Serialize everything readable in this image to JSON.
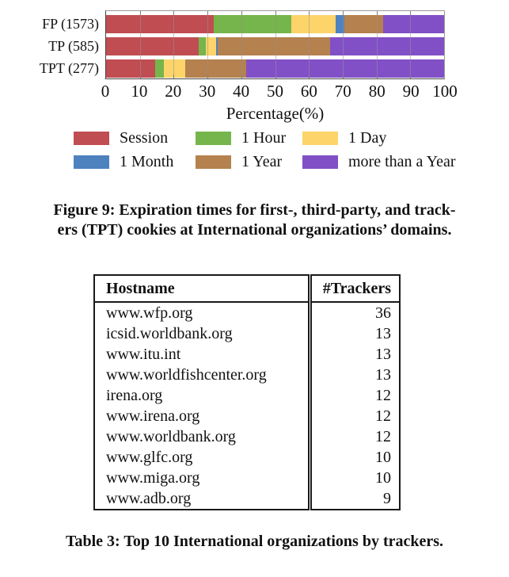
{
  "chart_data": {
    "type": "bar",
    "orientation": "horizontal",
    "stacked": true,
    "title": "",
    "xlabel": "Percentage(%)",
    "ylabel": "",
    "xlim": [
      0,
      100
    ],
    "xticks": [
      0,
      10,
      20,
      30,
      40,
      50,
      60,
      70,
      80,
      90,
      100
    ],
    "grid": true,
    "legend_position": "below",
    "categories": [
      "FP (1573)",
      "TP (585)",
      "TPT (277)"
    ],
    "series": [
      {
        "name": "Session",
        "color": "#c04d52",
        "values": [
          31.9,
          27.3,
          14.5
        ]
      },
      {
        "name": "1 Hour",
        "color": "#76b54b",
        "values": [
          22.8,
          2.2,
          2.7
        ]
      },
      {
        "name": "1 Day",
        "color": "#fcd469",
        "values": [
          13.3,
          3.0,
          6.3
        ]
      },
      {
        "name": "1 Month",
        "color": "#4e82be",
        "values": [
          2.6,
          0.6,
          0.0
        ]
      },
      {
        "name": "1 Year",
        "color": "#b5814e",
        "values": [
          11.4,
          33.1,
          17.9
        ]
      },
      {
        "name": "more than a Year",
        "color": "#8150c6",
        "values": [
          18.0,
          33.8,
          58.6
        ]
      }
    ]
  },
  "figure_caption": {
    "line1": "Figure 9: Expiration times for first-, third-party, and track-",
    "line2": "ers (TPT) cookies at International organizations’ domains."
  },
  "table": {
    "headers": [
      "Hostname",
      "#Trackers"
    ],
    "rows": [
      {
        "hostname": "www.wfp.org",
        "trackers": "36"
      },
      {
        "hostname": "icsid.worldbank.org",
        "trackers": "13"
      },
      {
        "hostname": "www.itu.int",
        "trackers": "13"
      },
      {
        "hostname": "www.worldfishcenter.org",
        "trackers": "13"
      },
      {
        "hostname": "irena.org",
        "trackers": "12"
      },
      {
        "hostname": "www.irena.org",
        "trackers": "12"
      },
      {
        "hostname": "www.worldbank.org",
        "trackers": "12"
      },
      {
        "hostname": "www.glfc.org",
        "trackers": "10"
      },
      {
        "hostname": "www.miga.org",
        "trackers": "10"
      },
      {
        "hostname": "www.adb.org",
        "trackers": "9"
      }
    ]
  },
  "table_caption": "Table 3: Top 10 International organizations by trackers."
}
